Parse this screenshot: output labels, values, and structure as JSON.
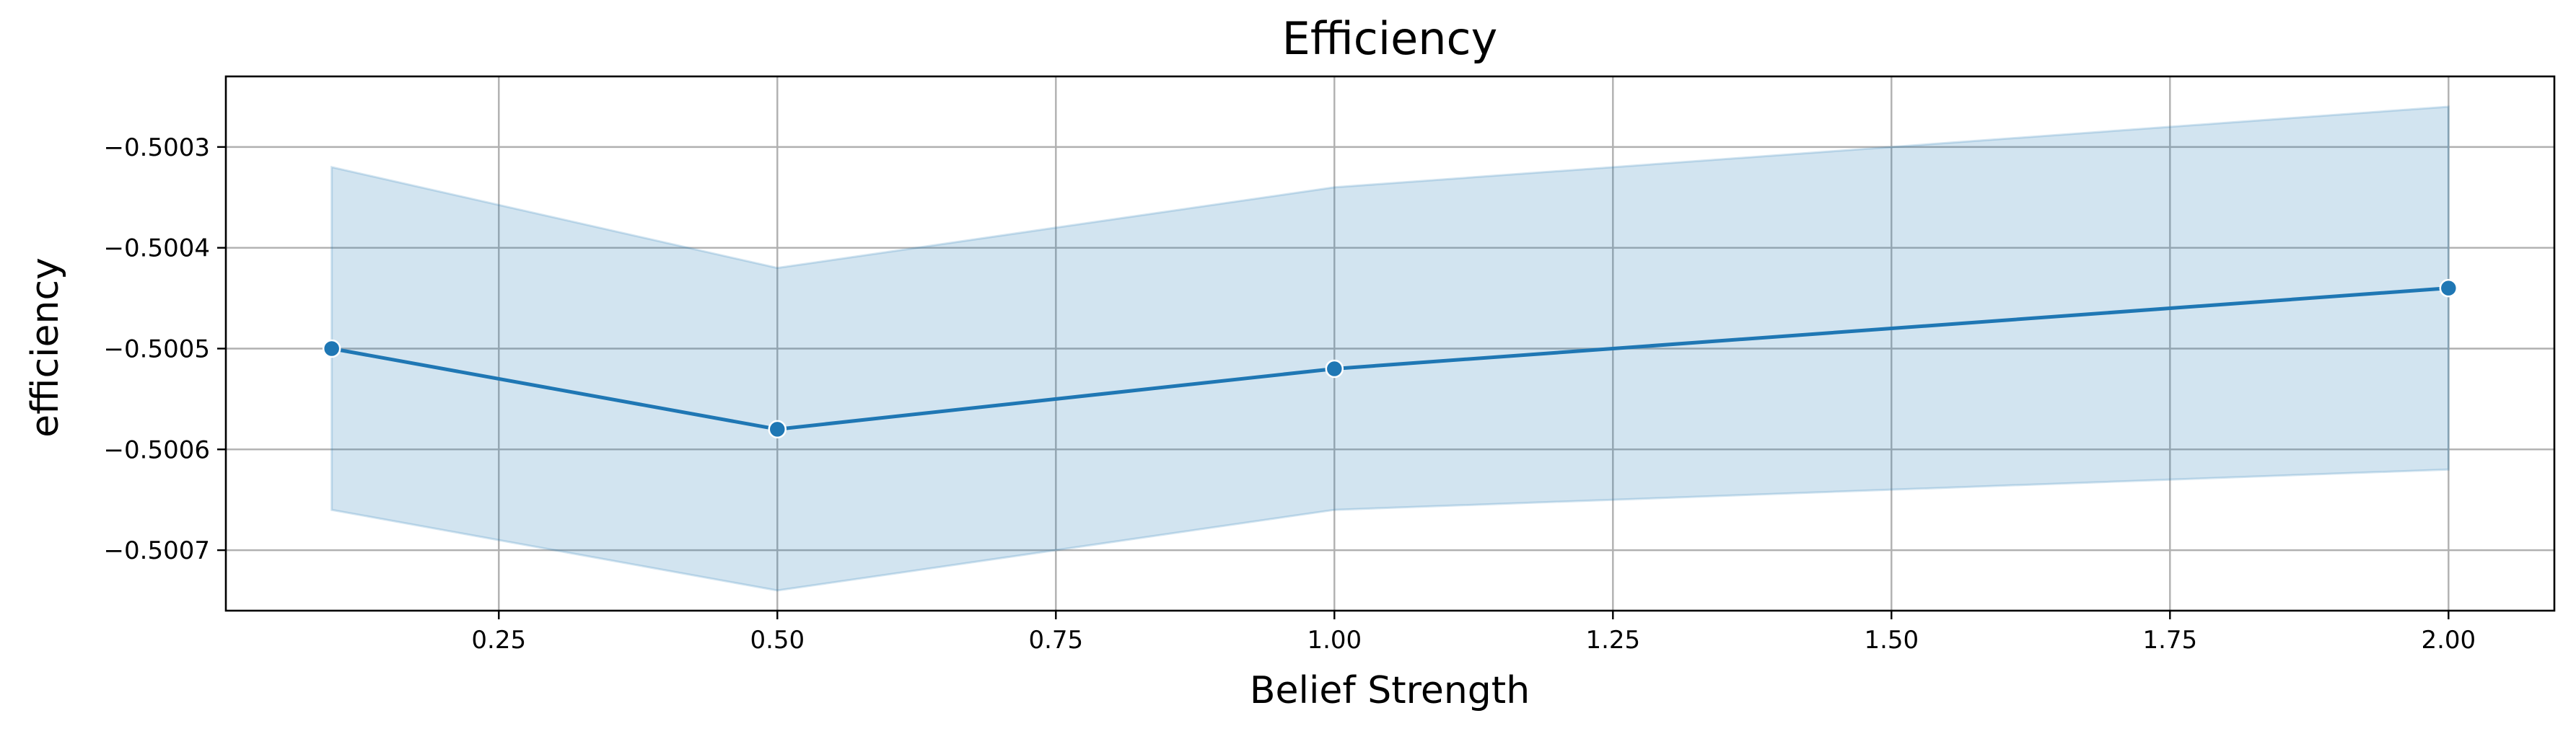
{
  "chart_data": {
    "type": "line",
    "title": "Efficiency",
    "xlabel": "Belief Strength",
    "ylabel": "efficiency",
    "xlim": [
      0.005,
      2.095
    ],
    "ylim": [
      -0.50076,
      -0.50023
    ],
    "x_ticks": [
      0.25,
      0.5,
      0.75,
      1.0,
      1.25,
      1.5,
      1.75,
      2.0
    ],
    "x_tick_labels": [
      "0.25",
      "0.50",
      "0.75",
      "1.00",
      "1.25",
      "1.50",
      "1.75",
      "2.00"
    ],
    "y_ticks": [
      -0.5003,
      -0.5004,
      -0.5005,
      -0.5006,
      -0.5007
    ],
    "y_tick_labels": [
      "−0.5003",
      "−0.5004",
      "−0.5005",
      "−0.5006",
      "−0.5007"
    ],
    "grid": true,
    "legend": "none",
    "series": [
      {
        "x": [
          0.1,
          0.5,
          1.0,
          2.0
        ],
        "y": [
          -0.5005,
          -0.50058,
          -0.50052,
          -0.50044
        ],
        "ci_upper": [
          -0.50032,
          -0.50042,
          -0.50034,
          -0.50026
        ],
        "ci_lower": [
          -0.50066,
          -0.50074,
          -0.50066,
          -0.50062
        ],
        "color": "#1f77b4",
        "band_color": "#1f77b4"
      }
    ]
  },
  "colors": {
    "background": "#ffffff",
    "grid": "#b0b0b0",
    "axes": "#000000",
    "line": "#1f77b4",
    "marker_edge": "#ffffff"
  }
}
